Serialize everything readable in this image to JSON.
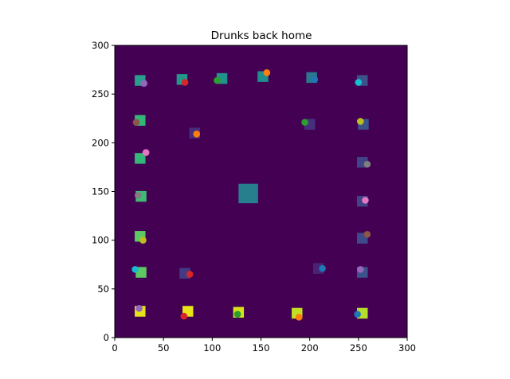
{
  "chart_data": {
    "type": "scatter",
    "title": "Drunks back home",
    "xlabel": "",
    "ylabel": "",
    "xlim": [
      0,
      300
    ],
    "ylim": [
      0,
      300
    ],
    "xticks": [
      0,
      50,
      100,
      150,
      200,
      250,
      300
    ],
    "yticks": [
      0,
      50,
      100,
      150,
      200,
      250,
      300
    ],
    "grid": false,
    "background": "#440154",
    "homes": [
      {
        "x": 26,
        "y": 264,
        "color": "#2a9d8c"
      },
      {
        "x": 69,
        "y": 265,
        "color": "#25968c"
      },
      {
        "x": 110,
        "y": 266,
        "color": "#22928c"
      },
      {
        "x": 152,
        "y": 268,
        "color": "#1f8e8d"
      },
      {
        "x": 202,
        "y": 267,
        "color": "#2a788e"
      },
      {
        "x": 254,
        "y": 264,
        "color": "#3b528b"
      },
      {
        "x": 26,
        "y": 223,
        "color": "#34b679"
      },
      {
        "x": 82,
        "y": 210,
        "color": "#472d7b"
      },
      {
        "x": 200,
        "y": 219,
        "color": "#46307e"
      },
      {
        "x": 255,
        "y": 219,
        "color": "#3b518b"
      },
      {
        "x": 26,
        "y": 184,
        "color": "#35b779"
      },
      {
        "x": 254,
        "y": 180,
        "color": "#414487"
      },
      {
        "x": 27,
        "y": 145,
        "color": "#3dbc74"
      },
      {
        "x": 137,
        "y": 148,
        "size": 20,
        "color": "#277f8e"
      },
      {
        "x": 254,
        "y": 140,
        "color": "#414487"
      },
      {
        "x": 26,
        "y": 104,
        "color": "#5ec962"
      },
      {
        "x": 254,
        "y": 102,
        "color": "#3e4a89"
      },
      {
        "x": 27,
        "y": 67,
        "color": "#5ec962"
      },
      {
        "x": 72,
        "y": 66,
        "color": "#443a83"
      },
      {
        "x": 209,
        "y": 71,
        "color": "#482475"
      },
      {
        "x": 254,
        "y": 67,
        "color": "#3b528b"
      },
      {
        "x": 26,
        "y": 27,
        "color": "#e5e419"
      },
      {
        "x": 75,
        "y": 27,
        "color": "#e8e419"
      },
      {
        "x": 127,
        "y": 26,
        "color": "#d8e219"
      },
      {
        "x": 187,
        "y": 25,
        "color": "#c2df23"
      },
      {
        "x": 254,
        "y": 25,
        "color": "#b5de2b"
      }
    ],
    "drunks": [
      {
        "x": 30,
        "y": 261,
        "color": "#9467bd"
      },
      {
        "x": 72,
        "y": 262,
        "color": "#d62728"
      },
      {
        "x": 105,
        "y": 264,
        "color": "#2ca02c"
      },
      {
        "x": 156,
        "y": 272,
        "color": "#ff7f0e"
      },
      {
        "x": 205,
        "y": 265,
        "color": "#1f77b4"
      },
      {
        "x": 250,
        "y": 262,
        "color": "#17becf"
      },
      {
        "x": 22,
        "y": 221,
        "color": "#8c564b"
      },
      {
        "x": 84,
        "y": 209,
        "color": "#ff7f0e"
      },
      {
        "x": 195,
        "y": 221,
        "color": "#2ca02c"
      },
      {
        "x": 252,
        "y": 222,
        "color": "#bcbd22"
      },
      {
        "x": 32,
        "y": 190,
        "color": "#e377c2"
      },
      {
        "x": 259,
        "y": 178,
        "color": "#7f7f7f"
      },
      {
        "x": 24,
        "y": 146,
        "color": "#7f7f7f"
      },
      {
        "x": 257,
        "y": 141,
        "color": "#e377c2"
      },
      {
        "x": 29,
        "y": 100,
        "color": "#bcbd22"
      },
      {
        "x": 259,
        "y": 106,
        "color": "#8c564b"
      },
      {
        "x": 21,
        "y": 70,
        "color": "#17becf"
      },
      {
        "x": 77,
        "y": 65,
        "color": "#d62728"
      },
      {
        "x": 213,
        "y": 71,
        "color": "#1f77b4"
      },
      {
        "x": 252,
        "y": 70,
        "color": "#9467bd"
      },
      {
        "x": 25,
        "y": 30,
        "color": "#9467bd"
      },
      {
        "x": 71,
        "y": 22,
        "color": "#d62728"
      },
      {
        "x": 126,
        "y": 24,
        "color": "#2ca02c"
      },
      {
        "x": 189,
        "y": 21,
        "color": "#ff7f0e"
      },
      {
        "x": 249,
        "y": 24,
        "color": "#1f77b4"
      }
    ]
  }
}
